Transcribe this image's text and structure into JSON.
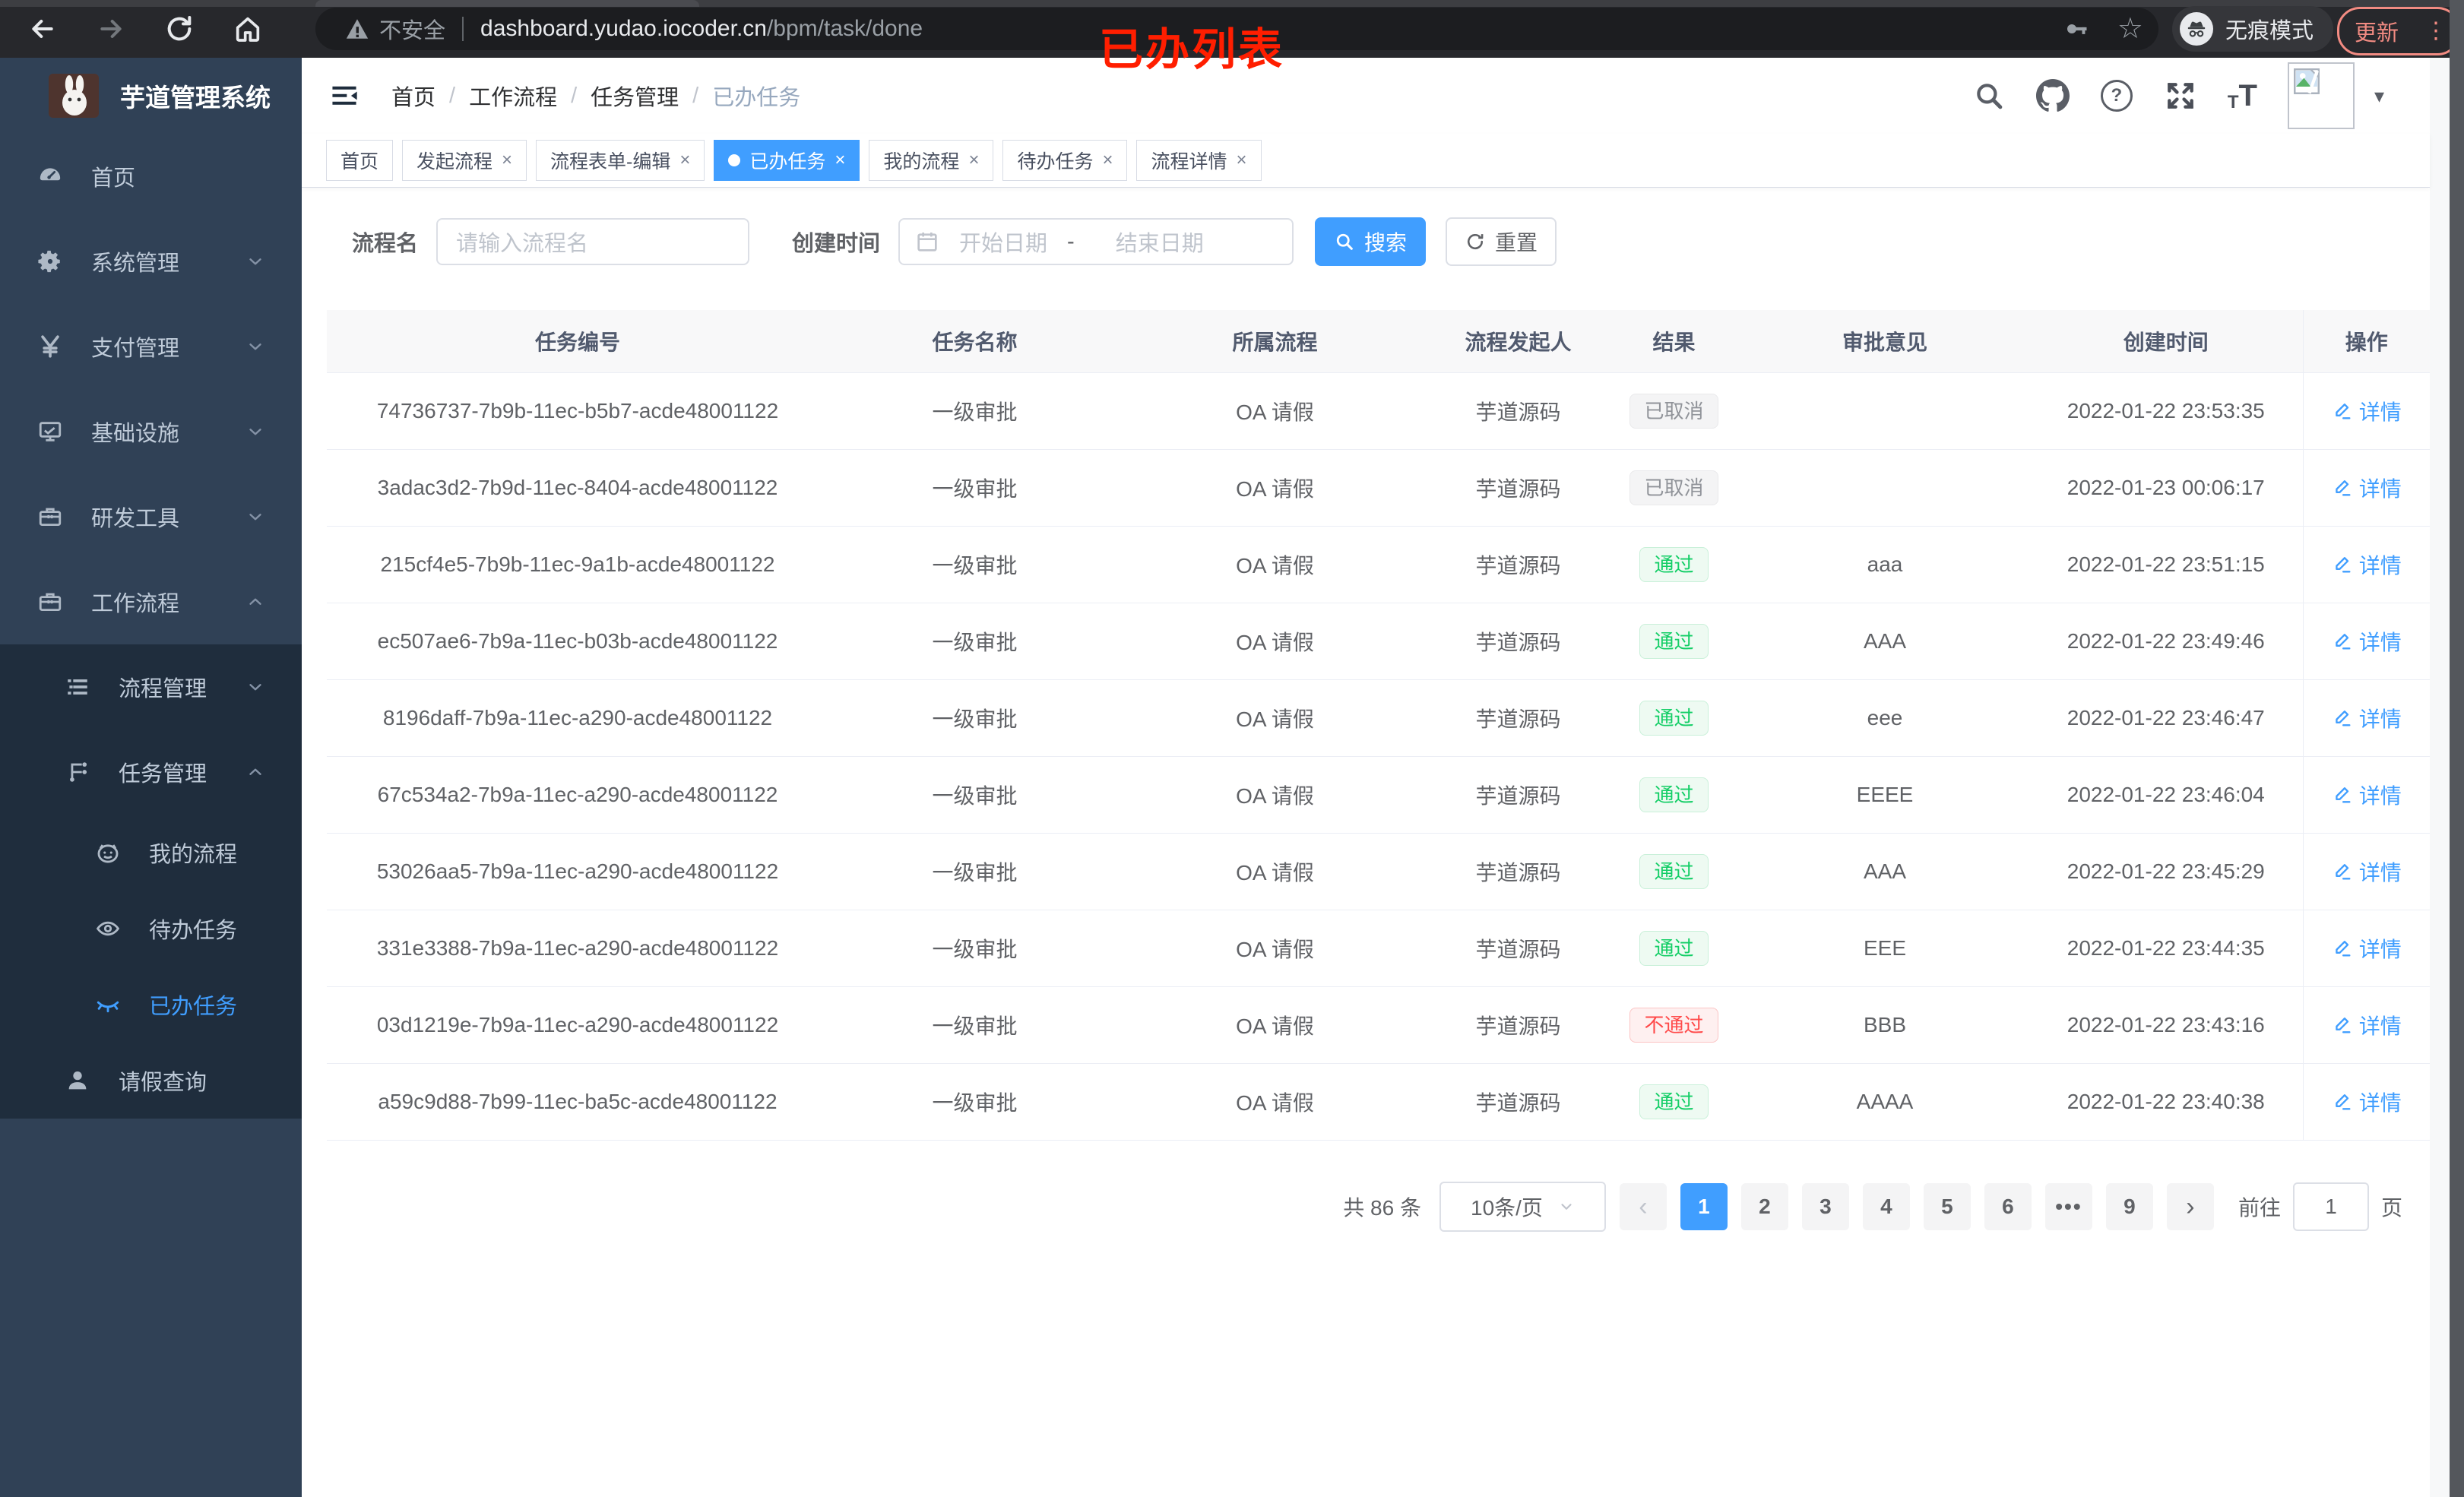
{
  "browser": {
    "security_label": "不安全",
    "url_host": "dashboard.yudao.iocoder.cn",
    "url_path": "/bpm/task/done",
    "incognito_label": "无痕模式",
    "update_label": "更新"
  },
  "annotation": {
    "text": "已办列表",
    "color": "#ff1e00"
  },
  "sidebar": {
    "logo_title": "芋道管理系统",
    "items": [
      {
        "label": "首页",
        "icon": "dashboard-icon",
        "level": 1,
        "chevron": "",
        "dark": false,
        "active": false
      },
      {
        "label": "系统管理",
        "icon": "gear-icon",
        "level": 1,
        "chevron": "down",
        "dark": false,
        "active": false
      },
      {
        "label": "支付管理",
        "icon": "yen-icon",
        "level": 1,
        "chevron": "down",
        "dark": false,
        "active": false
      },
      {
        "label": "基础设施",
        "icon": "monitor-icon",
        "level": 1,
        "chevron": "down",
        "dark": false,
        "active": false
      },
      {
        "label": "研发工具",
        "icon": "toolbox-icon",
        "level": 1,
        "chevron": "down",
        "dark": false,
        "active": false
      },
      {
        "label": "工作流程",
        "icon": "briefcase-icon",
        "level": 1,
        "chevron": "up",
        "dark": false,
        "active": false
      },
      {
        "label": "流程管理",
        "icon": "list-tree-icon",
        "level": 2,
        "chevron": "down",
        "dark": true,
        "active": false
      },
      {
        "label": "任务管理",
        "icon": "flow-icon",
        "level": 2,
        "chevron": "up",
        "dark": true,
        "active": false
      },
      {
        "label": "我的流程",
        "icon": "robot-icon",
        "level": 3,
        "chevron": "",
        "dark": true,
        "active": false
      },
      {
        "label": "待办任务",
        "icon": "eye-icon",
        "level": 3,
        "chevron": "",
        "dark": true,
        "active": false
      },
      {
        "label": "已办任务",
        "icon": "eye-closed-icon",
        "level": 3,
        "chevron": "",
        "dark": true,
        "active": true
      },
      {
        "label": "请假查询",
        "icon": "user-icon",
        "level": 21,
        "chevron": "",
        "dark": true,
        "active": false
      }
    ]
  },
  "breadcrumb": {
    "items": [
      {
        "label": "首页"
      },
      {
        "label": "工作流程"
      },
      {
        "label": "任务管理"
      },
      {
        "label": "已办任务"
      }
    ]
  },
  "tabs": [
    {
      "label": "首页",
      "closable": false,
      "active": false
    },
    {
      "label": "发起流程",
      "closable": true,
      "active": false
    },
    {
      "label": "流程表单-编辑",
      "closable": true,
      "active": false
    },
    {
      "label": "已办任务",
      "closable": true,
      "active": true
    },
    {
      "label": "我的流程",
      "closable": true,
      "active": false
    },
    {
      "label": "待办任务",
      "closable": true,
      "active": false
    },
    {
      "label": "流程详情",
      "closable": true,
      "active": false
    }
  ],
  "filters": {
    "name_label": "流程名",
    "name_placeholder": "请输入流程名",
    "time_label": "创建时间",
    "start_placeholder": "开始日期",
    "range_separator": "-",
    "end_placeholder": "结束日期",
    "search_label": "搜索",
    "reset_label": "重置"
  },
  "table": {
    "columns": [
      "任务编号",
      "任务名称",
      "所属流程",
      "流程发起人",
      "结果",
      "审批意见",
      "创建时间",
      "操作"
    ],
    "action_label": "详情",
    "rows": [
      {
        "id": "74736737-7b9b-11ec-b5b7-acde48001122",
        "name": "一级审批",
        "process": "OA 请假",
        "starter": "芋道源码",
        "result": {
          "label": "已取消",
          "type": "info"
        },
        "opinion": "",
        "created": "2022-01-22 23:53:35"
      },
      {
        "id": "3adac3d2-7b9d-11ec-8404-acde48001122",
        "name": "一级审批",
        "process": "OA 请假",
        "starter": "芋道源码",
        "result": {
          "label": "已取消",
          "type": "info"
        },
        "opinion": "",
        "created": "2022-01-23 00:06:17"
      },
      {
        "id": "215cf4e5-7b9b-11ec-9a1b-acde48001122",
        "name": "一级审批",
        "process": "OA 请假",
        "starter": "芋道源码",
        "result": {
          "label": "通过",
          "type": "success"
        },
        "opinion": "aaa",
        "created": "2022-01-22 23:51:15"
      },
      {
        "id": "ec507ae6-7b9a-11ec-b03b-acde48001122",
        "name": "一级审批",
        "process": "OA 请假",
        "starter": "芋道源码",
        "result": {
          "label": "通过",
          "type": "success"
        },
        "opinion": "AAA",
        "created": "2022-01-22 23:49:46"
      },
      {
        "id": "8196daff-7b9a-11ec-a290-acde48001122",
        "name": "一级审批",
        "process": "OA 请假",
        "starter": "芋道源码",
        "result": {
          "label": "通过",
          "type": "success"
        },
        "opinion": "eee",
        "created": "2022-01-22 23:46:47"
      },
      {
        "id": "67c534a2-7b9a-11ec-a290-acde48001122",
        "name": "一级审批",
        "process": "OA 请假",
        "starter": "芋道源码",
        "result": {
          "label": "通过",
          "type": "success"
        },
        "opinion": "EEEE",
        "created": "2022-01-22 23:46:04"
      },
      {
        "id": "53026aa5-7b9a-11ec-a290-acde48001122",
        "name": "一级审批",
        "process": "OA 请假",
        "starter": "芋道源码",
        "result": {
          "label": "通过",
          "type": "success"
        },
        "opinion": "AAA",
        "created": "2022-01-22 23:45:29"
      },
      {
        "id": "331e3388-7b9a-11ec-a290-acde48001122",
        "name": "一级审批",
        "process": "OA 请假",
        "starter": "芋道源码",
        "result": {
          "label": "通过",
          "type": "success"
        },
        "opinion": "EEE",
        "created": "2022-01-22 23:44:35"
      },
      {
        "id": "03d1219e-7b9a-11ec-a290-acde48001122",
        "name": "一级审批",
        "process": "OA 请假",
        "starter": "芋道源码",
        "result": {
          "label": "不通过",
          "type": "danger"
        },
        "opinion": "BBB",
        "created": "2022-01-22 23:43:16"
      },
      {
        "id": "a59c9d88-7b99-11ec-ba5c-acde48001122",
        "name": "一级审批",
        "process": "OA 请假",
        "starter": "芋道源码",
        "result": {
          "label": "通过",
          "type": "success"
        },
        "opinion": "AAAA",
        "created": "2022-01-22 23:40:38"
      }
    ]
  },
  "pagination": {
    "total_label": "共 86 条",
    "page_size_label": "10条/页",
    "pages": [
      "1",
      "2",
      "3",
      "4",
      "5",
      "6",
      "...",
      "9"
    ],
    "active_page": "1",
    "prev_enabled": false,
    "next_enabled": true,
    "goto_label": "前往",
    "goto_value": "1",
    "page_unit_label": "页"
  },
  "colors": {
    "accent": "#409eff",
    "success": "#13ce66",
    "danger": "#ff4949",
    "info": "#909399",
    "sidebar_bg": "#304156",
    "submenu_bg": "#1f2d3d"
  }
}
